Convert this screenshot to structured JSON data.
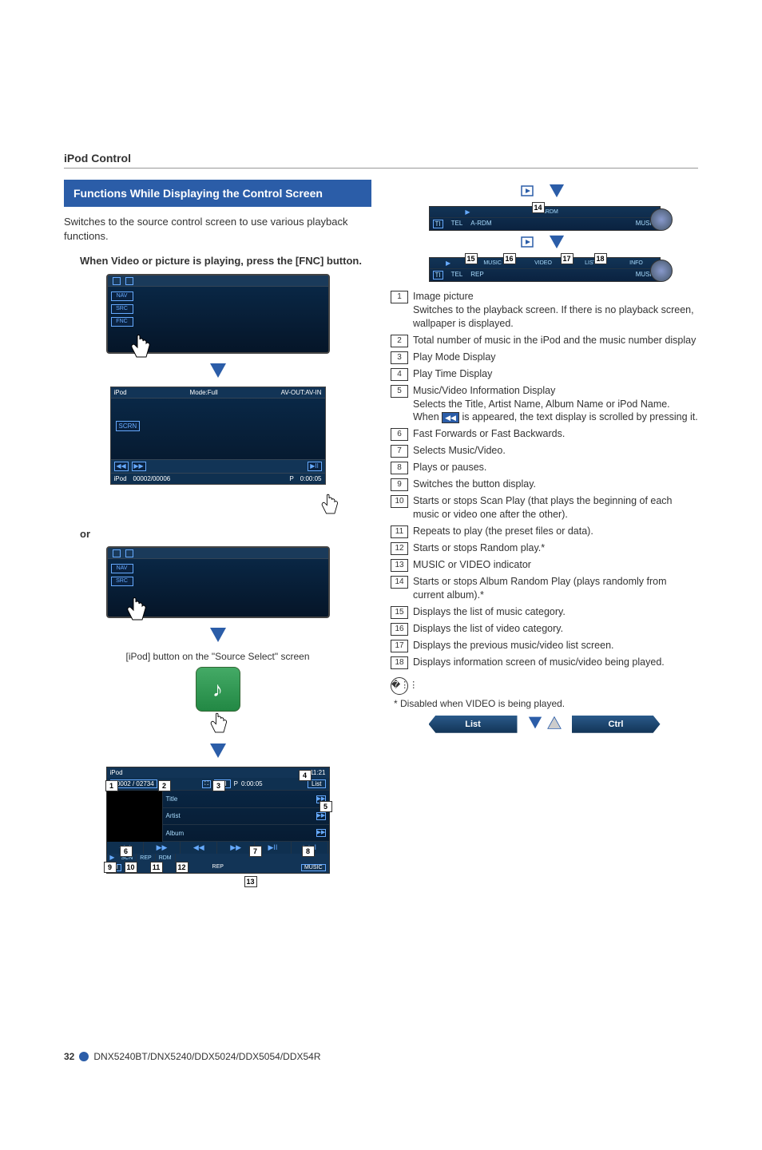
{
  "section_header": "iPod Control",
  "blue_box": "Functions While Displaying the Control Screen",
  "intro": "Switches to the source control screen to use various playback functions.",
  "step1": "When Video or picture is playing, press the [FNC] button.",
  "device_side_buttons": [
    "NAV",
    "SRC",
    "FNC"
  ],
  "screen1": {
    "title_left": "iPod",
    "title_mid": "Mode:Full",
    "title_right": "AV-OUT:AV-IN",
    "scrn": "SCRN",
    "track_left": "iPod",
    "track_mid": "00002/00006",
    "track_p": "P",
    "track_time": "0:00:05"
  },
  "or_label": "or",
  "source_caption": "[iPod] button on the \"Source Select\" screen",
  "ipod_main": {
    "hdr_left": "iPod",
    "hdr_right": "11:21",
    "counter": "00002 / 02734",
    "play_p": "P",
    "play_time": "0:00:05",
    "list_btn": "List",
    "info_lines": [
      "Title",
      "Artist",
      "Album"
    ],
    "ctrls": [
      "◀◀",
      "▶▶",
      "◀◀",
      "▶▶",
      "▶II",
      "▶▶I"
    ],
    "tabs": [
      "SCN",
      "REP",
      "RDM"
    ],
    "status_rep": "REP",
    "status_music": "MUSIC",
    "tel": "TEL"
  },
  "subbar1": {
    "center": "ARDM",
    "left": "A-RDM",
    "right": "MUSIC",
    "tel": "TEL"
  },
  "subbar2": {
    "tabs": [
      "MUSIC",
      "VIDEO",
      "LIST",
      "INFO"
    ],
    "left": "REP",
    "right": "MUSIC",
    "tel": "TEL"
  },
  "descriptions": [
    {
      "n": "1",
      "t": "Image picture",
      "sub": "Switches to the playback screen. If there is no playback screen, wallpaper is displayed."
    },
    {
      "n": "2",
      "t": "Total number of music in the iPod and the music number display"
    },
    {
      "n": "3",
      "t": "Play Mode Display"
    },
    {
      "n": "4",
      "t": "Play Time Display"
    },
    {
      "n": "5",
      "t": "Music/Video Information Display",
      "sub": "Selects the Title, Artist Name, Album Name or iPod Name.",
      "sub2a": "When ",
      "sub2icon": "◀◀",
      "sub2b": " is appeared, the text display is scrolled by pressing it."
    },
    {
      "n": "6",
      "t": "Fast Forwards or Fast Backwards."
    },
    {
      "n": "7",
      "t": "Selects Music/Video."
    },
    {
      "n": "8",
      "t": "Plays or pauses."
    },
    {
      "n": "9",
      "t": "Switches the button display."
    },
    {
      "n": "10",
      "t": "Starts or stops Scan Play (that plays the beginning of each music or video one after the other)."
    },
    {
      "n": "11",
      "t": "Repeats to play (the preset files or data)."
    },
    {
      "n": "12",
      "t": "Starts or stops Random play.*"
    },
    {
      "n": "13",
      "t": "MUSIC or VIDEO indicator"
    },
    {
      "n": "14",
      "t": "Starts or stops Album Random Play (plays randomly from current album).*"
    },
    {
      "n": "15",
      "t": "Displays the list of music category."
    },
    {
      "n": "16",
      "t": "Displays the list of video category."
    },
    {
      "n": "17",
      "t": "Displays the previous music/video list screen."
    },
    {
      "n": "18",
      "t": "Displays information screen of music/video being played."
    }
  ],
  "footnote": "* Disabled when VIDEO is being played.",
  "list_btn": "List",
  "ctrl_btn": "Ctrl",
  "annotations": {
    "main": [
      "1",
      "2",
      "3",
      "4",
      "5",
      "6",
      "7",
      "8",
      "9",
      "10",
      "11",
      "12",
      "13"
    ],
    "sub1": [
      "14"
    ],
    "sub2": [
      "15",
      "16",
      "17",
      "18"
    ]
  },
  "footer": {
    "page": "32",
    "models": "DNX5240BT/DNX5240/DDX5024/DDX5054/DDX54R"
  },
  "colors": {
    "blue_box": "#2b5da8",
    "screen_dark": "#0a2a4a",
    "accent": "#6af"
  }
}
